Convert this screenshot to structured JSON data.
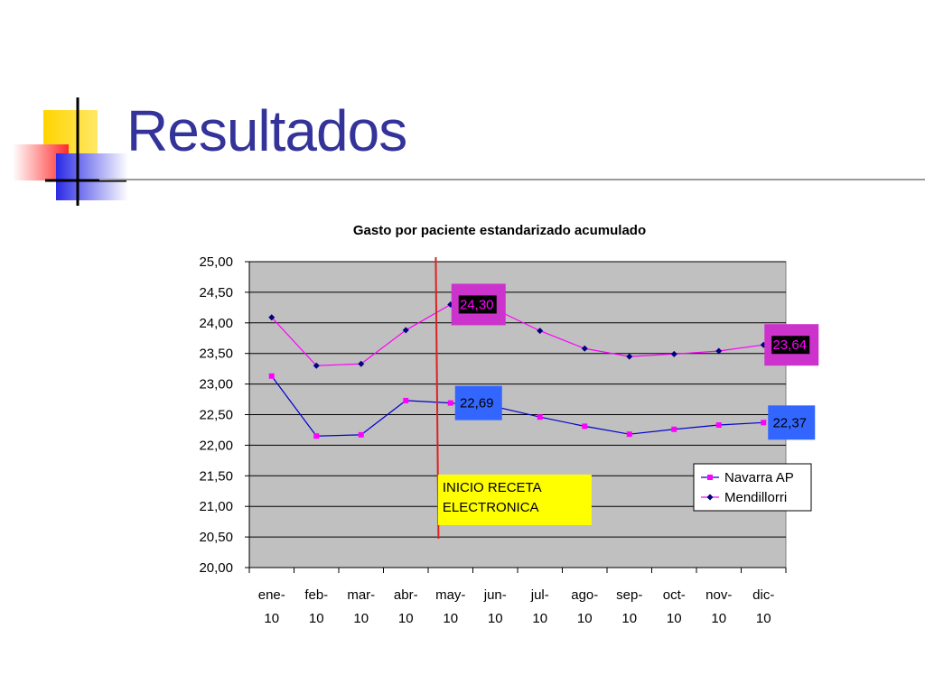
{
  "slide": {
    "title": "Resultados",
    "colors": {
      "title": "#33339a"
    }
  },
  "chart_data": {
    "type": "line",
    "title": "Gasto por paciente estandarizado acumulado",
    "xlabel": "",
    "ylabel": "",
    "categories": [
      [
        "ene-",
        "10"
      ],
      [
        "feb-",
        "10"
      ],
      [
        "mar-",
        "10"
      ],
      [
        "abr-",
        "10"
      ],
      [
        "may-",
        "10"
      ],
      [
        "jun-",
        "10"
      ],
      [
        "jul-",
        "10"
      ],
      [
        "ago-",
        "10"
      ],
      [
        "sep-",
        "10"
      ],
      [
        "oct-",
        "10"
      ],
      [
        "nov-",
        "10"
      ],
      [
        "dic-",
        "10"
      ]
    ],
    "ylim": [
      20,
      25
    ],
    "ytick_step": 0.5,
    "ytick_labels": [
      "20,00",
      "20,50",
      "21,00",
      "21,50",
      "22,00",
      "22,50",
      "23,00",
      "23,50",
      "24,00",
      "24,50",
      "25,00"
    ],
    "grid": true,
    "plot_background": "#c0c0c0",
    "legend_position": "right",
    "series": [
      {
        "name": "Navarra AP",
        "color": "#0000cc",
        "marker": "square",
        "marker_color": "#ff00ff",
        "values": [
          23.13,
          22.15,
          22.17,
          22.73,
          22.69,
          22.63,
          22.46,
          22.31,
          22.18,
          22.26,
          22.33,
          22.37
        ]
      },
      {
        "name": "Mendillorri",
        "color": "#ff00ff",
        "marker": "diamond",
        "marker_color": "#000080",
        "values": [
          24.09,
          23.3,
          23.33,
          23.88,
          24.3,
          24.22,
          23.87,
          23.58,
          23.45,
          23.49,
          23.54,
          23.64
        ]
      }
    ],
    "data_labels": [
      {
        "series": 1,
        "index": 4,
        "text": "24,30",
        "fill": "#000000",
        "text_color": "#ff00ff",
        "border": "#cc33cc"
      },
      {
        "series": 1,
        "index": 11,
        "text": "23,64",
        "fill": "#000000",
        "text_color": "#ff00ff",
        "border": "#cc33cc"
      },
      {
        "series": 0,
        "index": 4,
        "text": "22,69",
        "fill": "#3366ff",
        "text_color": "#000000",
        "border": "#3366ff"
      },
      {
        "series": 0,
        "index": 11,
        "text": "22,37",
        "fill": "#3366ff",
        "text_color": "#000000",
        "border": "#3366ff"
      }
    ],
    "annotation": {
      "lines": [
        "INICIO RECETA",
        "ELECTRONICA"
      ],
      "fill": "#ffff00",
      "marker_line_color": "#dd2222"
    }
  }
}
